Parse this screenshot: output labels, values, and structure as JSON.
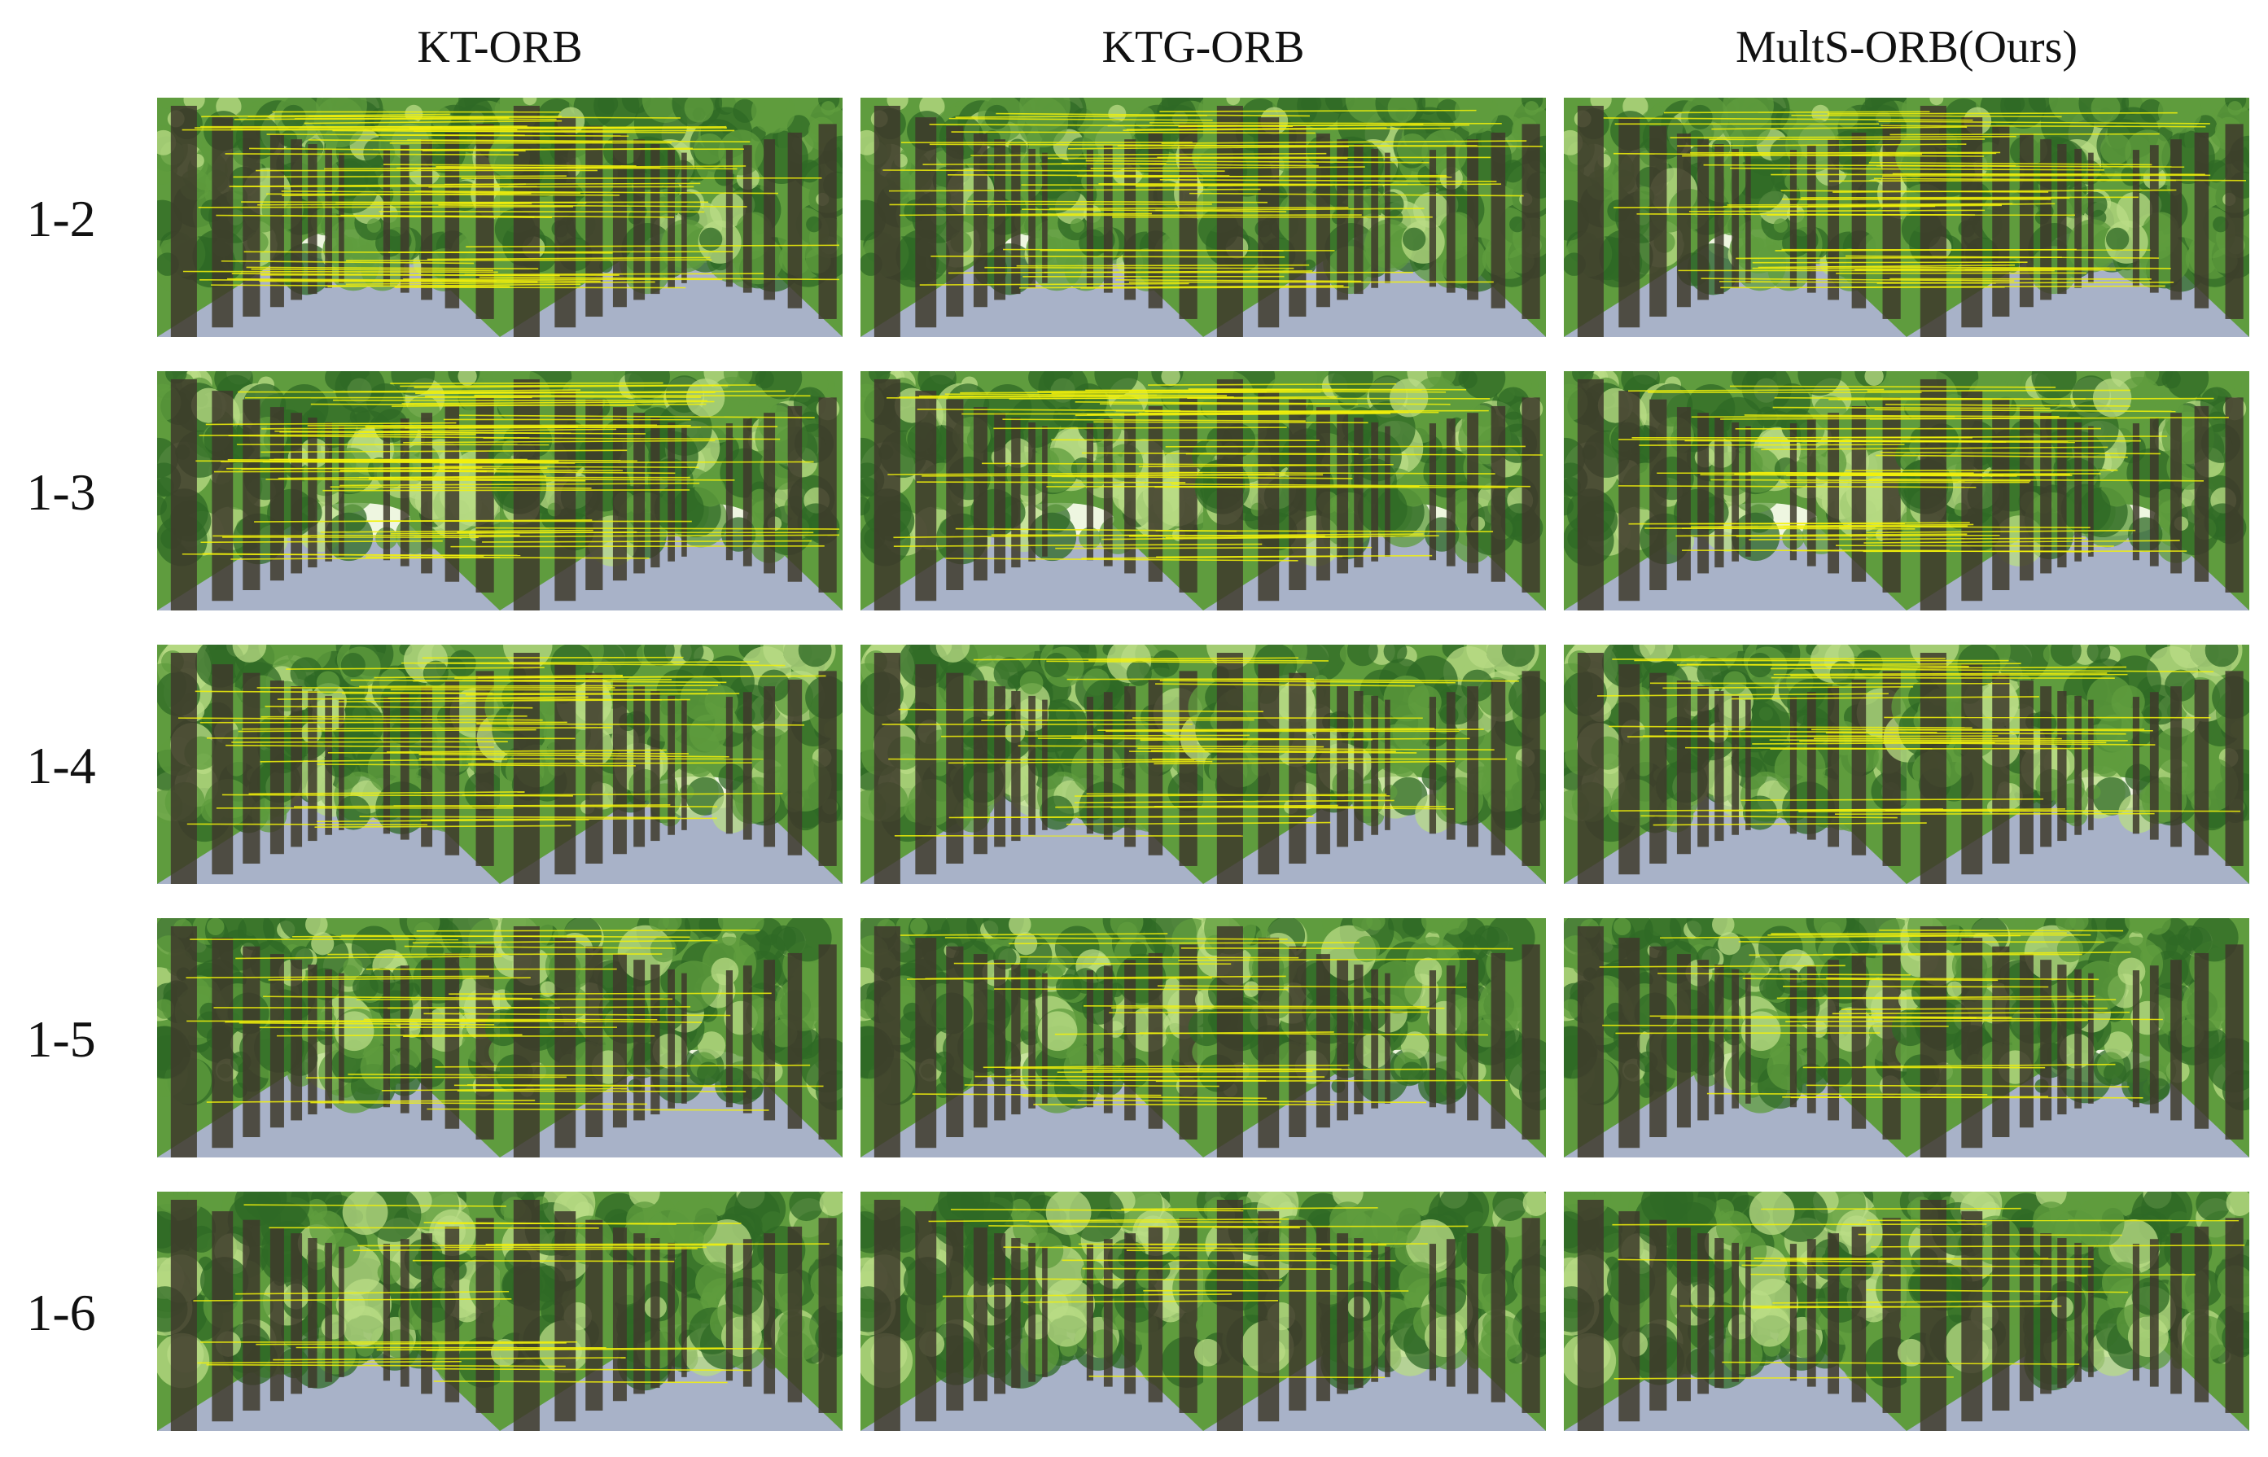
{
  "columns": [
    {
      "title": "KT-ORB"
    },
    {
      "title": "KTG-ORB"
    },
    {
      "title": "MultS-ORB(Ours)"
    }
  ],
  "rows": [
    {
      "label": "1-2",
      "match_density": 1.0
    },
    {
      "label": "1-3",
      "match_density": 0.95
    },
    {
      "label": "1-4",
      "match_density": 0.65
    },
    {
      "label": "1-5",
      "match_density": 0.5
    },
    {
      "label": "1-6",
      "match_density": 0.3
    }
  ],
  "colors": {
    "foliage_dark": "#2f6a25",
    "foliage_mid": "#5f9c3e",
    "foliage_light": "#b9dc86",
    "sky": "#eef6e0",
    "road": "#a8b2c8",
    "trunk": "#3e3a2c",
    "match_line": "#f4f20a"
  }
}
